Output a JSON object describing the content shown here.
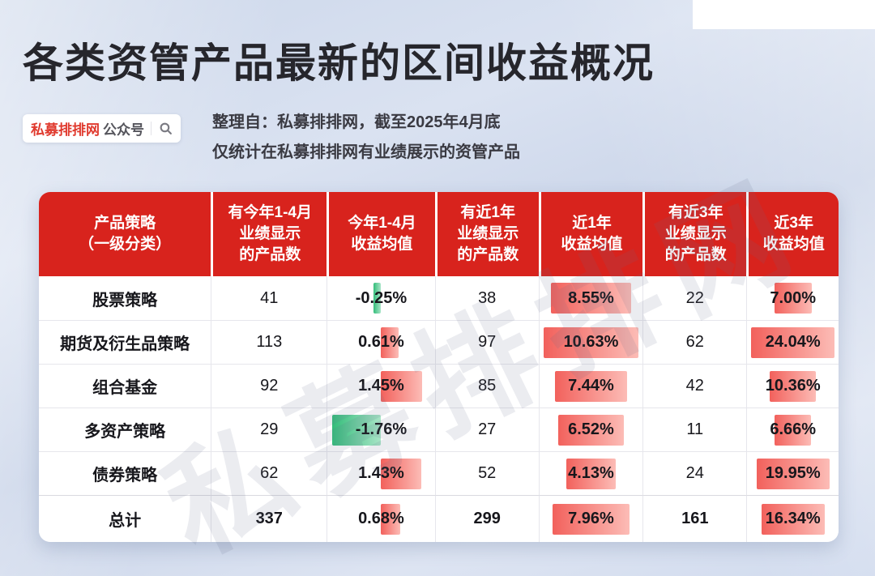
{
  "page": {
    "title": "各类资管产品最新的区间收益概况",
    "badge": {
      "brand": "私募排排网",
      "suffix": "公众号",
      "icon": "search-icon"
    },
    "source_line1": "整理自：私募排排网，截至2025年4月底",
    "source_line2": "仅统计在私募排排网有业绩展示的资管产品",
    "watermark": "私募排排网"
  },
  "colors": {
    "header_red": "#d8231d",
    "badge_red": "#e03a2e",
    "bar_red": "#f2615c",
    "bar_red_light": "#fcbcb6",
    "bar_green": "#33bd7a",
    "bar_green_light": "#a9e5c7"
  },
  "chart_data": {
    "type": "table",
    "title": "各类资管产品最新的区间收益概况",
    "note": "整理自：私募排排网，截至2025年4月底；仅统计在私募排排网有业绩展示的资管产品",
    "columns": [
      {
        "id": "strategy",
        "kind": "text",
        "label_lines": [
          "产品策略",
          "（一级分类）"
        ]
      },
      {
        "id": "count_ytd",
        "kind": "count",
        "label_lines": [
          "有今年1-4月",
          "业绩显示",
          "的产品数"
        ]
      },
      {
        "id": "ret_ytd",
        "kind": "bar_diverging",
        "label_lines": [
          "今年1-4月",
          "收益均值"
        ]
      },
      {
        "id": "count_1y",
        "kind": "count",
        "label_lines": [
          "有近1年",
          "业绩显示",
          "的产品数"
        ]
      },
      {
        "id": "ret_1y",
        "kind": "bar_centered",
        "label_lines": [
          "近1年",
          "收益均值"
        ]
      },
      {
        "id": "count_3y",
        "kind": "count",
        "label_lines": [
          "有近3年",
          "业绩显示",
          "的产品数"
        ]
      },
      {
        "id": "ret_3y",
        "kind": "bar_centered",
        "label_lines": [
          "近3年",
          "收益均值"
        ]
      }
    ],
    "rows": [
      {
        "strategy": "股票策略",
        "count_ytd": "41",
        "ret_ytd": {
          "text": "-0.25%",
          "value": -0.25
        },
        "count_1y": "38",
        "ret_1y": {
          "text": "8.55%",
          "value": 8.55
        },
        "count_3y": "22",
        "ret_3y": {
          "text": "7.00%",
          "value": 7.0
        },
        "is_total": false
      },
      {
        "strategy": "期货及衍生品策略",
        "count_ytd": "113",
        "ret_ytd": {
          "text": "0.61%",
          "value": 0.61
        },
        "count_1y": "97",
        "ret_1y": {
          "text": "10.63%",
          "value": 10.63
        },
        "count_3y": "62",
        "ret_3y": {
          "text": "24.04%",
          "value": 24.04
        },
        "is_total": false
      },
      {
        "strategy": "组合基金",
        "count_ytd": "92",
        "ret_ytd": {
          "text": "1.45%",
          "value": 1.45
        },
        "count_1y": "85",
        "ret_1y": {
          "text": "7.44%",
          "value": 7.44
        },
        "count_3y": "42",
        "ret_3y": {
          "text": "10.36%",
          "value": 10.36
        },
        "is_total": false
      },
      {
        "strategy": "多资产策略",
        "count_ytd": "29",
        "ret_ytd": {
          "text": "-1.76%",
          "value": -1.76
        },
        "count_1y": "27",
        "ret_1y": {
          "text": "6.52%",
          "value": 6.52
        },
        "count_3y": "11",
        "ret_3y": {
          "text": "6.66%",
          "value": 6.66
        },
        "is_total": false
      },
      {
        "strategy": "债券策略",
        "count_ytd": "62",
        "ret_ytd": {
          "text": "1.43%",
          "value": 1.43
        },
        "count_1y": "52",
        "ret_1y": {
          "text": "4.13%",
          "value": 4.13
        },
        "count_3y": "24",
        "ret_3y": {
          "text": "19.95%",
          "value": 19.95
        },
        "is_total": false
      },
      {
        "strategy": "总计",
        "count_ytd": "337",
        "ret_ytd": {
          "text": "0.68%",
          "value": 0.68
        },
        "count_1y": "299",
        "ret_1y": {
          "text": "7.96%",
          "value": 7.96
        },
        "count_3y": "161",
        "ret_3y": {
          "text": "16.34%",
          "value": 16.34
        },
        "is_total": true
      }
    ],
    "positive_bar_color": "red",
    "negative_bar_color": "green"
  }
}
